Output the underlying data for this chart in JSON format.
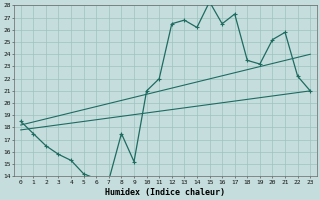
{
  "xlabel": "Humidex (Indice chaleur)",
  "xlim": [
    -0.5,
    23.5
  ],
  "ylim": [
    14,
    28
  ],
  "xticks": [
    0,
    1,
    2,
    3,
    4,
    5,
    6,
    7,
    8,
    9,
    10,
    11,
    12,
    13,
    14,
    15,
    16,
    17,
    18,
    19,
    20,
    21,
    22,
    23
  ],
  "yticks": [
    14,
    15,
    16,
    17,
    18,
    19,
    20,
    21,
    22,
    23,
    24,
    25,
    26,
    27,
    28
  ],
  "bg_color": "#c5dedd",
  "line_color": "#1e6b60",
  "grid_color": "#9dc4c0",
  "line1_x": [
    0,
    1,
    2,
    3,
    4,
    5,
    6,
    7,
    8,
    9,
    10,
    11,
    12,
    13,
    14,
    15,
    16,
    17,
    18,
    19,
    20,
    21,
    22,
    23
  ],
  "line1_y": [
    18.5,
    17.5,
    16.5,
    15.8,
    15.3,
    14.2,
    13.8,
    13.7,
    17.5,
    15.2,
    21.0,
    22.0,
    26.5,
    26.8,
    26.2,
    28.3,
    26.5,
    27.3,
    23.5,
    23.2,
    25.2,
    25.8,
    22.2,
    21.0
  ],
  "line2_x": [
    0,
    23
  ],
  "line2_y": [
    17.8,
    21.0
  ],
  "line3_x": [
    0,
    23
  ],
  "line3_y": [
    18.2,
    24.0
  ]
}
